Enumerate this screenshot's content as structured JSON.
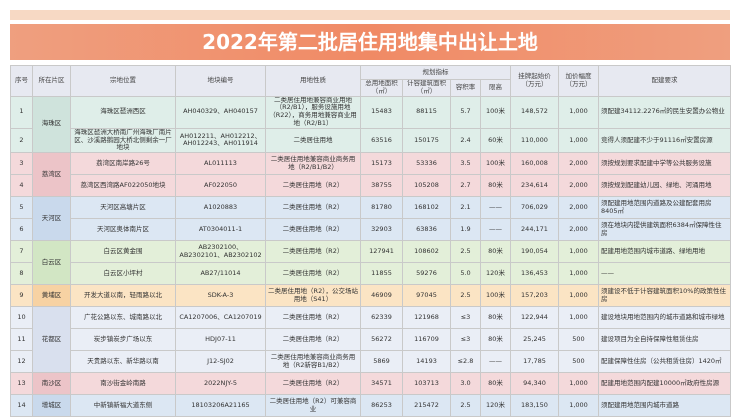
{
  "header": {
    "title": "2022年第二批居住用地集中出让土地"
  },
  "table": {
    "columns": [
      "序号",
      "所在片区",
      "宗地位置",
      "地块编号",
      "用地性质"
    ],
    "group": {
      "label": "规划指标",
      "columns": [
        "总用地面积（㎡）",
        "计容建筑面积（㎡）",
        "容积率",
        "限高"
      ]
    },
    "tail_columns": [
      "挂牌起始价（万元）",
      "加价幅度（万元）",
      "配建要求"
    ],
    "rows": [
      {
        "no": "1",
        "region": "海珠区",
        "location": "海珠区琶洲西区",
        "code": "AH040329、AH040157",
        "use": "二类居住用地兼容商业用地（R2/B1），服务设施用地（R22），商务用地兼容商业用地（R2/B1）",
        "area": "15483",
        "gfa": "88115",
        "far": "5.7",
        "height": "100米",
        "price": "148,572",
        "step": "1,000",
        "req": "须配建34112.2276㎡的民生安置办公物业"
      },
      {
        "no": "2",
        "location": "海珠区琶洲大桥南广州海珠厂南片区、沙溪路鹅园大桥北侧剩余一厂地块",
        "code": "AH012211、AH012212、AH012243、AH011914",
        "use": "二类居住用地",
        "area": "63516",
        "gfa": "150175",
        "far": "2.4",
        "height": "60米",
        "price": "110,000",
        "step": "1,000",
        "req": "竞得人须配建不少于91116㎡安置房源"
      },
      {
        "no": "3",
        "region": "荔湾区",
        "location": "荔湾区南岸路26号",
        "code": "AL011113",
        "use": "二类居住用地兼容商业商务用地（R2/B1/B2）",
        "area": "15173",
        "gfa": "53336",
        "far": "3.5",
        "height": "100米",
        "price": "160,008",
        "step": "2,000",
        "req": "须按规划要求配建中学等公共服务设施"
      },
      {
        "no": "4",
        "location": "荔湾区西湾路AF022050地块",
        "code": "AF022050",
        "use": "二类居住用地（R2）",
        "area": "38755",
        "gfa": "105208",
        "far": "2.7",
        "height": "80米",
        "price": "234,614",
        "step": "2,000",
        "req": "须按规划配建幼儿园、绿地、河涌用地"
      },
      {
        "no": "5",
        "region": "天河区",
        "location": "天河区高塘片区",
        "code": "A1020883",
        "use": "二类居住用地（R2）",
        "area": "81780",
        "gfa": "168102",
        "far": "2.1",
        "height": "——",
        "price": "706,029",
        "step": "2,000",
        "req": "须配建用地范围内道路及公建配套用房8405㎡"
      },
      {
        "no": "6",
        "location": "天河区奥体南片区",
        "code": "AT0304011-1",
        "use": "二类居住用地（R2）",
        "area": "32903",
        "gfa": "63836",
        "far": "1.9",
        "height": "——",
        "price": "244,171",
        "step": "2,000",
        "req": "须在地块内提供建筑面积6384㎡保障性住房"
      },
      {
        "no": "7",
        "region": "白云区",
        "location": "白云区黄金围",
        "code": "AB2302100、AB2302101、AB2302102",
        "use": "二类居住用地（R2）",
        "area": "127941",
        "gfa": "108602",
        "far": "2.5",
        "height": "80米",
        "price": "190,054",
        "step": "1,000",
        "req": "配建用地范围内城市道路、绿地用地"
      },
      {
        "no": "8",
        "location": "白云区小坪村",
        "code": "AB27/11014",
        "use": "二类居住用地（R2）",
        "area": "11855",
        "gfa": "59276",
        "far": "5.0",
        "height": "120米",
        "price": "136,453",
        "step": "1,000",
        "req": "——"
      },
      {
        "no": "9",
        "region": "黄埔区",
        "location": "开发大道以南，轻雨路以北",
        "code": "SDK-A-3",
        "use": "二类居住用地（R2），公交场站用地（S41）",
        "area": "46909",
        "gfa": "97045",
        "far": "2.5",
        "height": "100米",
        "price": "157,203",
        "step": "1,000",
        "req": "须建设不低于计容建筑面积10%的政策性住房"
      },
      {
        "no": "10",
        "region": "花都区",
        "location": "广花公路以东、城南路以北",
        "code": "CA1207006、CA1207019",
        "use": "二类居住用地（R2）",
        "area": "62339",
        "gfa": "121968",
        "far": "≤3",
        "height": "80米",
        "price": "122,944",
        "step": "1,000",
        "req": "建设地块用地范围内的城市道路和城市绿地"
      },
      {
        "no": "11",
        "location": "炭步镇炭步广场以东",
        "code": "HDJ07-11",
        "use": "二类居住用地（R2）",
        "area": "56272",
        "gfa": "116709",
        "far": "≤3",
        "height": "80米",
        "price": "25,245",
        "step": "500",
        "req": "建设项目为全自持保障性租赁住房"
      },
      {
        "no": "12",
        "location": "天贵路以东、新华路以南",
        "code": "J12-SJ02",
        "use": "二类居住用地兼容商业商务用地（R2新容B1/B2）",
        "area": "5869",
        "gfa": "14193",
        "far": "≤2.8",
        "height": "——",
        "price": "17,785",
        "step": "500",
        "req": "配建保障性住房（公共租赁住房）1420㎡"
      },
      {
        "no": "13",
        "region": "南沙区",
        "location": "南沙街金岭南路",
        "code": "2022NJY-5",
        "use": "二类居住用地（R2）",
        "area": "34571",
        "gfa": "103713",
        "far": "3.0",
        "height": "80米",
        "price": "94,340",
        "step": "1,000",
        "req": "配建用地范围内配建10000㎡政府性房源"
      },
      {
        "no": "14",
        "region": "增城区",
        "location": "中新镇新福大道东侧",
        "code": "18103206A21165",
        "use": "二类居住用地（R2）可兼容商业",
        "area": "86253",
        "gfa": "215472",
        "far": "2.5",
        "height": "120米",
        "price": "183,150",
        "step": "1,000",
        "req": "须配建用地范围内城市道路"
      }
    ]
  }
}
